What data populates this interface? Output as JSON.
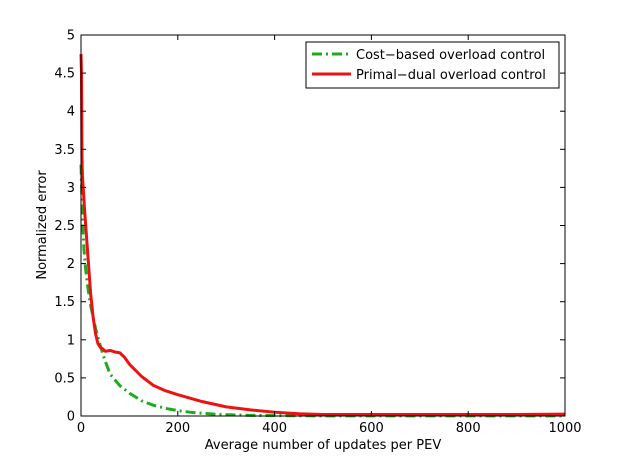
{
  "chart_data": {
    "type": "line",
    "title": "",
    "xlabel": "Average number of updates per PEV",
    "ylabel": "Normalized error",
    "xlim": [
      0,
      1000
    ],
    "ylim": [
      0,
      5
    ],
    "xticks": [
      0,
      200,
      400,
      600,
      800,
      1000
    ],
    "xtick_labels": [
      "0",
      "200",
      "400",
      "600",
      "800",
      "1000"
    ],
    "yticks": [
      0,
      0.5,
      1,
      1.5,
      2,
      2.5,
      3,
      3.5,
      4,
      4.5,
      5
    ],
    "ytick_labels": [
      "0",
      "0.5",
      "1",
      "1.5",
      "2",
      "2.5",
      "3",
      "3.5",
      "4",
      "4.5",
      "5"
    ],
    "grid": false,
    "legend": "top-right",
    "series": [
      {
        "name": "Cost−based overload control",
        "color": "#1faa1f",
        "style": "dash-dot",
        "x": [
          0,
          3,
          6,
          10,
          15,
          20,
          25,
          30,
          40,
          50,
          60,
          80,
          100,
          125,
          150,
          175,
          200,
          225,
          250,
          275,
          300,
          325,
          350,
          400,
          450,
          500,
          600,
          700,
          800,
          900,
          1000
        ],
        "y": [
          3.3,
          2.6,
          2.2,
          1.9,
          1.65,
          1.45,
          1.3,
          1.15,
          0.92,
          0.72,
          0.55,
          0.4,
          0.3,
          0.2,
          0.14,
          0.1,
          0.07,
          0.05,
          0.035,
          0.025,
          0.018,
          0.012,
          0.008,
          0.005,
          0.003,
          0.002,
          0.001,
          0.001,
          0.001,
          0.001,
          0.001
        ]
      },
      {
        "name": "Primal−dual overload control",
        "color": "#ee1111",
        "style": "solid",
        "x": [
          0,
          1,
          2,
          3,
          5,
          8,
          12,
          16,
          20,
          25,
          30,
          35,
          40,
          45,
          50,
          60,
          70,
          80,
          90,
          100,
          125,
          150,
          175,
          200,
          250,
          300,
          350,
          400,
          450,
          500,
          600,
          700,
          800,
          900,
          1000
        ],
        "y": [
          4.75,
          4.5,
          3.4,
          3.15,
          2.95,
          2.65,
          2.3,
          1.95,
          1.6,
          1.3,
          1.08,
          0.95,
          0.9,
          0.88,
          0.85,
          0.86,
          0.84,
          0.83,
          0.77,
          0.68,
          0.52,
          0.4,
          0.33,
          0.28,
          0.19,
          0.12,
          0.08,
          0.05,
          0.03,
          0.02,
          0.02,
          0.02,
          0.02,
          0.02,
          0.025
        ]
      }
    ]
  }
}
